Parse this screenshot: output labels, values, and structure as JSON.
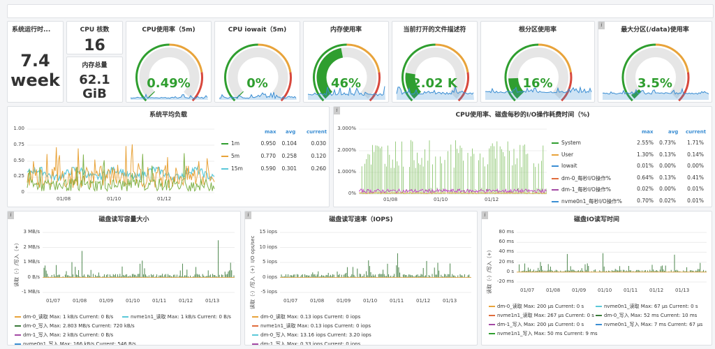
{
  "colors": {
    "green": "#2f9e2f",
    "orange": "#e8a33a",
    "red": "#d8483d",
    "blue": "#3b8ed3",
    "cyan": "#5bc8d8",
    "purple": "#a349a4",
    "magenta": "#c030c0",
    "grey": "#e6e6e6",
    "darkgreen": "#3a7a3a"
  },
  "stats": {
    "uptime": {
      "title": "系统运行时...",
      "value": "7.4",
      "unit": "week"
    },
    "cpu_cores": {
      "title": "CPU 核数",
      "value": "16"
    },
    "mem_total": {
      "title": "内存总量",
      "value": "62.1",
      "unit": "GiB"
    }
  },
  "gauges": [
    {
      "title": "CPU使用率（5m)",
      "value": "0.49%",
      "fraction": 0.005
    },
    {
      "title": "CPU iowait（5m)",
      "value": "0%",
      "fraction": 0.0
    },
    {
      "title": "内存使用率",
      "value": "46%",
      "fraction": 0.46
    },
    {
      "title": "当前打开的文件描述符",
      "value": "2.02 K",
      "fraction": 0.2
    },
    {
      "title": "根分区使用率",
      "value": "16%",
      "fraction": 0.16
    },
    {
      "title": "最大分区(/data)使用率",
      "value": "3.5%",
      "fraction": 0.035
    }
  ],
  "load": {
    "title": "系统平均负载",
    "yticks": [
      "1.00",
      "0.75",
      "0.50",
      "0.25",
      "0"
    ],
    "xticks": [
      "01/08",
      "01/10",
      "01/12"
    ],
    "headers": [
      "max",
      "avg",
      "current"
    ],
    "rows": [
      {
        "name": "1m",
        "max": "0.950",
        "avg": "0.104",
        "current": "0.030"
      },
      {
        "name": "5m",
        "max": "0.770",
        "avg": "0.258",
        "current": "0.120"
      },
      {
        "name": "15m",
        "max": "0.590",
        "avg": "0.301",
        "current": "0.260"
      }
    ]
  },
  "cpuio": {
    "title": "CPU使用率、磁盘每秒的I/O操作耗费时间（%)",
    "yticks": [
      "3.000%",
      "2.000%",
      "1.000%",
      "0%"
    ],
    "xticks": [
      "01/08",
      "01/10",
      "01/12"
    ],
    "headers": [
      "max",
      "avg",
      "current"
    ],
    "rows": [
      {
        "name": "System",
        "max": "2.55%",
        "avg": "0.73%",
        "current": "1.71%"
      },
      {
        "name": "User",
        "max": "1.30%",
        "avg": "0.13%",
        "current": "0.14%"
      },
      {
        "name": "Iowait",
        "max": "0.01%",
        "avg": "0.00%",
        "current": "0.00%"
      },
      {
        "name": "dm-0_每秒I/O操作%",
        "max": "0.64%",
        "avg": "0.13%",
        "current": "0.41%"
      },
      {
        "name": "dm-1_每秒I/O操作%",
        "max": "0.02%",
        "avg": "0.00%",
        "current": "0.01%"
      },
      {
        "name": "nvme0n1_每秒I/O操作%",
        "max": "0.70%",
        "avg": "0.02%",
        "current": "0.01%"
      }
    ]
  },
  "disk_bytes": {
    "title": "磁盘读写容量大小",
    "ylabel": "读取（-）/写入（+）",
    "yticks": [
      "3 MB/s",
      "2 MB/s",
      "1 MB/s",
      "0 B/s",
      "-1 MB/s"
    ],
    "xticks": [
      "01/07",
      "01/08",
      "01/09",
      "01/10",
      "01/11",
      "01/12",
      "01/13"
    ],
    "legend": [
      {
        "a": "dm-0_读取  Max: 1 kB/s  Current: 0 B/s",
        "b": "nvme1n1_读取  Max: 1 kB/s  Current: 0 B/s"
      },
      {
        "a": "dm-0_写入  Max: 2.803 MB/s  Current: 720 kB/s",
        "b": ""
      },
      {
        "a": "dm-1_写入  Max: 2 kB/s  Current: 0 B/s",
        "b": ""
      },
      {
        "a": "nvme0n1_写入  Max: 166 kB/s  Current: 546 B/s",
        "b": ""
      }
    ]
  },
  "disk_iops": {
    "title": "磁盘读写速率（IOPS)",
    "ylabel": "读取（-）/写入（+）I/O ops/sec",
    "yticks": [
      "15 iops",
      "10 iops",
      "5 iops",
      "0 iops",
      "-5 iops"
    ],
    "xticks": [
      "01/07",
      "01/08",
      "01/09",
      "01/10",
      "01/11",
      "01/12",
      "01/13"
    ],
    "legend": [
      "dm-0_读取  Max: 0.13 iops  Current: 0 iops",
      "nvme1n1_读取  Max: 0.13 iops  Current: 0 iops",
      "dm-0_写入  Max: 13.16 iops  Current: 3.20 iops",
      "dm-1_写入  Max: 0.33 iops  Current: 0 iops"
    ]
  },
  "disk_time": {
    "title": "磁盘IO读写时间",
    "ylabel": "读取（-）/写入（+）",
    "yticks": [
      "80 ms",
      "60 ms",
      "40 ms",
      "20 ms",
      "0 s",
      "-20 ms"
    ],
    "xticks": [
      "01/07",
      "01/08",
      "01/09",
      "01/10",
      "01/11",
      "01/12",
      "01/13"
    ],
    "legend": [
      {
        "a": "dm-0_读取  Max: 200 µs  Current: 0 s",
        "b": "nvme0n1_读取  Max: 67 µs  Current: 0 s"
      },
      {
        "a": "nvme1n1_读取  Max: 267 µs  Current: 0 s",
        "b": "dm-0_写入  Max: 52 ms  Current: 10 ms"
      },
      {
        "a": "dm-1_写入  Max: 200 µs  Current: 0 s",
        "b": "nvme0n1_写入  Max: 7 ms  Current: 67 µs"
      },
      {
        "a": "nvme1n1_写入  Max: 50 ms  Current: 9 ms",
        "b": ""
      }
    ]
  }
}
